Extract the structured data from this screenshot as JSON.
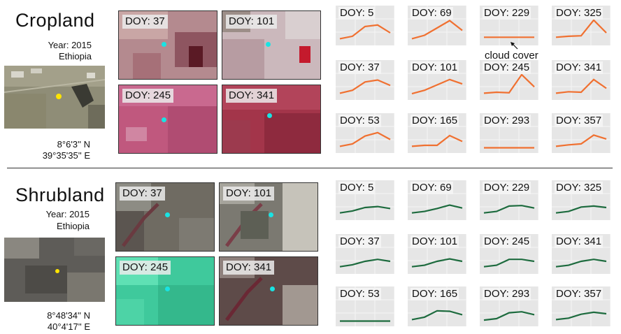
{
  "colors": {
    "crop_line": "#f07030",
    "shrub_line": "#1d6b3e",
    "marker": "#19e3e3"
  },
  "panels": [
    {
      "key": "crop",
      "title": "Cropland",
      "year": "Year: 2015",
      "country": "Ethiopia",
      "lat": "8°6'3'' N",
      "lon": "39°35'35'' E",
      "tiles": [
        "DOY: 37",
        "DOY: 101",
        "DOY: 245",
        "DOY: 341"
      ],
      "charts": [
        {
          "label": "DOY: 5",
          "values": [
            0.16,
            0.26,
            0.66,
            0.72,
            0.4
          ]
        },
        {
          "label": "DOY: 69",
          "values": [
            0.16,
            0.3,
            0.6,
            0.9,
            0.5
          ]
        },
        {
          "label": "DOY: 229",
          "values": [
            0.22,
            0.22,
            0.22,
            0.22,
            0.22
          ]
        },
        {
          "label": "DOY: 325",
          "values": [
            0.22,
            0.26,
            0.28,
            0.92,
            0.4
          ]
        },
        {
          "label": "DOY: 37",
          "values": [
            0.16,
            0.28,
            0.62,
            0.7,
            0.48
          ]
        },
        {
          "label": "DOY: 101",
          "values": [
            0.14,
            0.28,
            0.5,
            0.72,
            0.54
          ]
        },
        {
          "label": "DOY: 245",
          "values": [
            0.16,
            0.2,
            0.18,
            0.92,
            0.42
          ]
        },
        {
          "label": "DOY: 341",
          "values": [
            0.16,
            0.22,
            0.2,
            0.72,
            0.36
          ]
        },
        {
          "label": "DOY: 53",
          "values": [
            0.16,
            0.26,
            0.58,
            0.72,
            0.44
          ]
        },
        {
          "label": "DOY: 165",
          "values": [
            0.16,
            0.2,
            0.2,
            0.6,
            0.36
          ]
        },
        {
          "label": "DOY: 293",
          "values": [
            0.1,
            0.1,
            0.1,
            0.1,
            0.1
          ]
        },
        {
          "label": "DOY: 357",
          "values": [
            0.16,
            0.22,
            0.26,
            0.62,
            0.46
          ]
        }
      ],
      "annotation": "cloud cover"
    },
    {
      "key": "shrub",
      "title": "Shrubland",
      "year": "Year: 2015",
      "country": "Ethiopia",
      "lat": "8°48'34'' N",
      "lon": "40°4'17'' E",
      "tiles": [
        "DOY: 37",
        "DOY: 101",
        "DOY: 245",
        "DOY: 341"
      ],
      "charts": [
        {
          "label": "DOY: 5",
          "values": [
            0.18,
            0.26,
            0.4,
            0.44,
            0.36
          ]
        },
        {
          "label": "DOY: 69",
          "values": [
            0.18,
            0.24,
            0.36,
            0.5,
            0.38
          ]
        },
        {
          "label": "DOY: 229",
          "values": [
            0.18,
            0.24,
            0.46,
            0.48,
            0.38
          ]
        },
        {
          "label": "DOY: 325",
          "values": [
            0.18,
            0.24,
            0.42,
            0.46,
            0.4
          ]
        },
        {
          "label": "DOY: 37",
          "values": [
            0.18,
            0.26,
            0.4,
            0.48,
            0.4
          ]
        },
        {
          "label": "DOY: 101",
          "values": [
            0.18,
            0.24,
            0.4,
            0.5,
            0.4
          ]
        },
        {
          "label": "DOY: 245",
          "values": [
            0.18,
            0.24,
            0.48,
            0.48,
            0.4
          ]
        },
        {
          "label": "DOY: 341",
          "values": [
            0.18,
            0.24,
            0.4,
            0.48,
            0.4
          ]
        },
        {
          "label": "DOY: 53",
          "values": [
            0.1,
            0.1,
            0.1,
            0.1,
            0.1
          ]
        },
        {
          "label": "DOY: 165",
          "values": [
            0.16,
            0.26,
            0.52,
            0.5,
            0.36
          ]
        },
        {
          "label": "DOY: 293",
          "values": [
            0.14,
            0.2,
            0.44,
            0.48,
            0.36
          ]
        },
        {
          "label": "DOY: 357",
          "values": [
            0.16,
            0.22,
            0.38,
            0.46,
            0.4
          ]
        }
      ]
    }
  ]
}
